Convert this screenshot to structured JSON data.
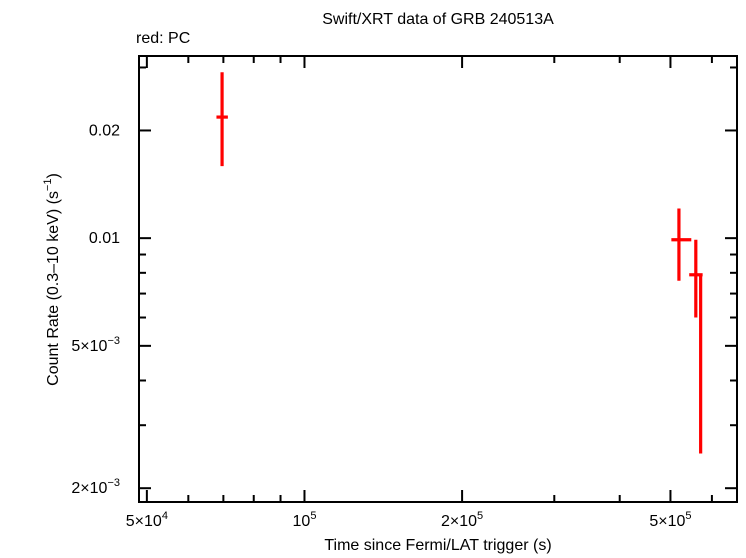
{
  "header": {
    "title": "Swift/XRT data of GRB 240513A",
    "legend": "red: PC"
  },
  "colors": {
    "pc_mode": "#ff0000",
    "axes": "#000000",
    "background": "#ffffff"
  },
  "chart_data": {
    "type": "scatter",
    "title": "Swift/XRT data of GRB 240513A",
    "xlabel": "Time since Fermi/LAT trigger (s)",
    "ylabel": "Count Rate (0.3–10 keV) (s^−1)",
    "xscale": "log",
    "yscale": "log",
    "grid": false,
    "legend_position": "top-left",
    "legend_entries": [
      {
        "label": "red: PC",
        "mode": "PC",
        "color": "#ff0000"
      }
    ],
    "xlim": [
      48300,
      670000
    ],
    "ylim": [
      0.00183,
      0.0323
    ],
    "x_major_ticks": [
      {
        "value": 50000,
        "label": [
          {
            "t": "5×10"
          },
          {
            "sup": "4"
          }
        ]
      },
      {
        "value": 100000,
        "label": [
          {
            "t": "10"
          },
          {
            "sup": "5"
          }
        ]
      },
      {
        "value": 200000,
        "label": [
          {
            "t": "2×10"
          },
          {
            "sup": "5"
          }
        ]
      },
      {
        "value": 500000,
        "label": [
          {
            "t": "5×10"
          },
          {
            "sup": "5"
          }
        ]
      }
    ],
    "x_minor_ticks": [
      60000,
      70000,
      80000,
      90000,
      300000,
      400000,
      600000
    ],
    "y_major_ticks": [
      {
        "value": 0.02,
        "label": [
          {
            "t": "0.02"
          }
        ]
      },
      {
        "value": 0.01,
        "label": [
          {
            "t": "0.01"
          }
        ]
      },
      {
        "value": 0.005,
        "label": [
          {
            "t": "5×10"
          },
          {
            "sup": "−3"
          }
        ]
      },
      {
        "value": 0.002,
        "label": [
          {
            "t": "2×10"
          },
          {
            "sup": "−3"
          }
        ]
      }
    ],
    "y_minor_ticks": [
      0.03,
      0.009,
      0.008,
      0.007,
      0.006,
      0.004,
      0.003
    ],
    "xlabel_segments": [
      {
        "t": "Time since Fermi/LAT trigger (s)"
      }
    ],
    "ylabel_segments": [
      {
        "t": "Count Rate (0.3–10 keV) (s"
      },
      {
        "sup": "−1"
      },
      {
        "t": ")"
      }
    ],
    "series": [
      {
        "name": "PC",
        "color": "#ff0000",
        "points": [
          {
            "t": 69600,
            "t_lo": 67900,
            "t_hi": 71400,
            "rate": 0.0218,
            "rate_lo": 0.0159,
            "rate_hi": 0.0291
          },
          {
            "t": 519000,
            "t_lo": 502000,
            "t_hi": 548000,
            "rate": 0.0099,
            "rate_lo": 0.0076,
            "rate_hi": 0.0121
          },
          {
            "t": 559000,
            "t_lo": 543000,
            "t_hi": 576000,
            "rate": 0.0079,
            "rate_lo": 0.006,
            "rate_hi": 0.0099
          },
          {
            "t": 571000,
            "t_lo": 571000,
            "t_hi": 571000,
            "rate": 0.0079,
            "rate_lo": 0.0025,
            "rate_hi": 0.0079
          }
        ]
      }
    ]
  }
}
